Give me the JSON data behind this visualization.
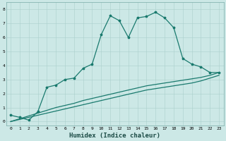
{
  "xlabel": "Humidex (Indice chaleur)",
  "xlim": [
    -0.5,
    23.5
  ],
  "ylim": [
    -0.3,
    8.5
  ],
  "xticks": [
    0,
    1,
    2,
    3,
    4,
    5,
    6,
    7,
    8,
    9,
    10,
    11,
    12,
    13,
    14,
    15,
    16,
    17,
    18,
    19,
    20,
    21,
    22,
    23
  ],
  "yticks": [
    0,
    1,
    2,
    3,
    4,
    5,
    6,
    7,
    8
  ],
  "bg_color": "#cce8e6",
  "grid_color": "#aacfcc",
  "line_color": "#1a7a6e",
  "line1_x": [
    0,
    1,
    2,
    3,
    4,
    5,
    6,
    7,
    8,
    9,
    10,
    11,
    12,
    13,
    14,
    15,
    16,
    17,
    18,
    19,
    20,
    21,
    22,
    23
  ],
  "line1_y": [
    0.45,
    0.3,
    0.1,
    0.7,
    2.45,
    2.6,
    3.0,
    3.1,
    3.8,
    4.1,
    6.2,
    7.55,
    7.2,
    6.0,
    7.4,
    7.5,
    7.8,
    7.4,
    6.7,
    4.5,
    4.1,
    3.9,
    3.5,
    3.5
  ],
  "line2_x": [
    0,
    4,
    5,
    6,
    7,
    8,
    9,
    10,
    11,
    12,
    13,
    14,
    15,
    16,
    17,
    18,
    19,
    20,
    21,
    22,
    23
  ],
  "line2_y": [
    0.0,
    0.8,
    1.0,
    1.15,
    1.3,
    1.5,
    1.65,
    1.8,
    1.95,
    2.1,
    2.25,
    2.4,
    2.55,
    2.65,
    2.75,
    2.85,
    2.95,
    3.05,
    3.15,
    3.3,
    3.5
  ],
  "line3_x": [
    0,
    4,
    5,
    6,
    7,
    8,
    9,
    10,
    11,
    12,
    13,
    14,
    15,
    16,
    17,
    18,
    19,
    20,
    21,
    22,
    23
  ],
  "line3_y": [
    0.0,
    0.6,
    0.75,
    0.9,
    1.05,
    1.2,
    1.35,
    1.5,
    1.65,
    1.8,
    1.95,
    2.1,
    2.25,
    2.35,
    2.45,
    2.55,
    2.65,
    2.75,
    2.9,
    3.1,
    3.3
  ],
  "marker_size": 2.5,
  "line_width": 0.9,
  "tick_fontsize": 4.5,
  "label_fontsize": 6.5
}
